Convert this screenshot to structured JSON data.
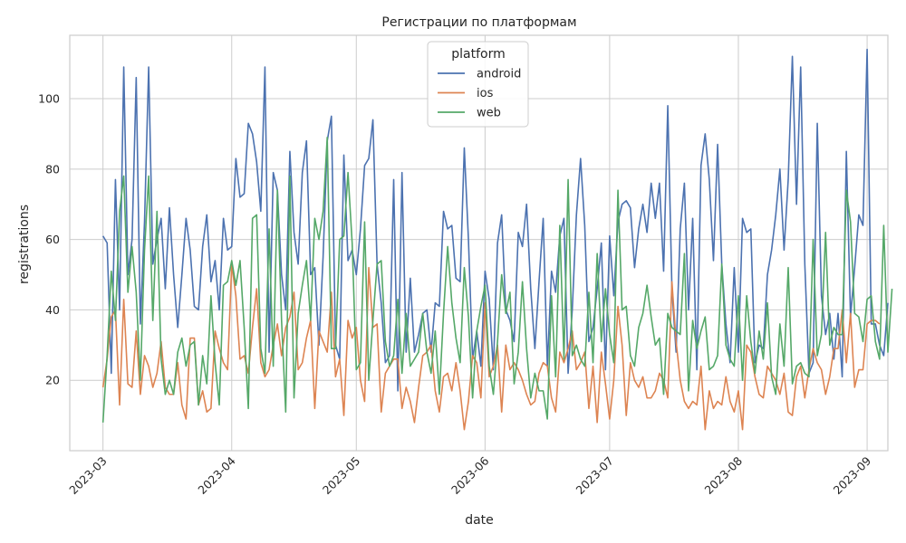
{
  "chart_data": {
    "type": "line",
    "title": "Регистрации по платформам",
    "xlabel": "date",
    "ylabel": "registrations",
    "xlim": [
      "2023-02-21",
      "2023-09-06"
    ],
    "ylim": [
      0,
      118
    ],
    "x_ticks": [
      "2023-03",
      "2023-04",
      "2023-05",
      "2023-06",
      "2023-07",
      "2023-08",
      "2023-09"
    ],
    "y_ticks": [
      20,
      40,
      60,
      80,
      100
    ],
    "grid": true,
    "legend": {
      "title": "platform",
      "placement": "top-center"
    },
    "x_start": "2023-03-01",
    "x_end": "2023-08-31",
    "series": [
      {
        "name": "android",
        "color": "#4c72b0",
        "values": [
          61,
          59,
          22,
          77,
          40,
          109,
          50,
          60,
          106,
          36,
          65,
          109,
          53,
          60,
          66,
          46,
          69,
          50,
          35,
          50,
          66,
          57,
          41,
          40,
          58,
          67,
          48,
          54,
          40,
          66,
          57,
          58,
          83,
          72,
          73,
          93,
          90,
          82,
          68,
          109,
          28,
          79,
          74,
          50,
          40,
          85,
          62,
          53,
          79,
          88,
          50,
          52,
          30,
          55,
          88,
          95,
          30,
          26,
          84,
          54,
          57,
          50,
          63,
          81,
          83,
          94,
          53,
          42,
          25,
          27,
          77,
          17,
          79,
          28,
          49,
          28,
          33,
          39,
          40,
          28,
          42,
          41,
          68,
          63,
          64,
          49,
          48,
          86,
          60,
          26,
          34,
          24,
          51,
          43,
          23,
          59,
          67,
          40,
          37,
          31,
          62,
          58,
          70,
          46,
          29,
          48,
          66,
          24,
          51,
          45,
          61,
          66,
          22,
          40,
          67,
          83,
          64,
          31,
          35,
          46,
          59,
          23,
          61,
          44,
          65,
          70,
          71,
          69,
          52,
          63,
          70,
          62,
          76,
          66,
          76,
          51,
          98,
          46,
          28,
          63,
          76,
          40,
          66,
          23,
          81,
          90,
          77,
          54,
          87,
          53,
          36,
          25,
          52,
          28,
          66,
          62,
          63,
          25,
          30,
          29,
          50,
          57,
          67,
          80,
          57,
          77,
          112,
          70,
          109,
          53,
          22,
          25,
          93,
          44,
          33,
          39,
          26,
          39,
          21,
          85,
          38,
          52,
          67,
          64,
          114,
          36,
          36,
          30,
          27,
          42
        ]
      },
      {
        "name": "ios",
        "color": "#dd8452",
        "values": [
          18,
          26,
          38,
          40,
          13,
          43,
          19,
          18,
          34,
          16,
          27,
          24,
          18,
          22,
          31,
          18,
          16,
          16,
          25,
          13,
          9,
          32,
          32,
          13,
          17,
          11,
          12,
          34,
          29,
          25,
          23,
          53,
          44,
          26,
          27,
          22,
          35,
          46,
          25,
          21,
          23,
          30,
          36,
          27,
          35,
          38,
          45,
          23,
          25,
          32,
          37,
          12,
          34,
          31,
          28,
          45,
          21,
          26,
          10,
          37,
          32,
          35,
          20,
          14,
          52,
          35,
          36,
          11,
          22,
          24,
          26,
          26,
          12,
          18,
          14,
          8,
          18,
          27,
          28,
          30,
          17,
          11,
          21,
          22,
          17,
          25,
          17,
          6,
          14,
          27,
          25,
          15,
          42,
          21,
          24,
          30,
          11,
          30,
          23,
          25,
          23,
          20,
          16,
          13,
          14,
          22,
          25,
          24,
          15,
          11,
          28,
          25,
          29,
          34,
          23,
          25,
          28,
          12,
          24,
          8,
          28,
          19,
          9,
          20,
          41,
          30,
          10,
          25,
          20,
          18,
          21,
          15,
          15,
          17,
          22,
          20,
          15,
          48,
          31,
          20,
          14,
          12,
          14,
          13,
          24,
          6,
          17,
          12,
          14,
          13,
          21,
          14,
          11,
          17,
          6,
          30,
          28,
          21,
          16,
          15,
          24,
          22,
          20,
          16,
          22,
          11,
          10,
          21,
          24,
          15,
          23,
          29,
          25,
          23,
          16,
          21,
          29,
          29,
          40,
          25,
          39,
          18,
          23,
          23,
          36,
          37,
          37,
          36
        ]
      },
      {
        "name": "web",
        "color": "#55a868",
        "values": [
          8,
          27,
          51,
          37,
          68,
          78,
          45,
          58,
          45,
          20,
          57,
          78,
          37,
          68,
          26,
          16,
          20,
          16,
          28,
          32,
          24,
          30,
          31,
          13,
          27,
          19,
          44,
          25,
          13,
          47,
          48,
          54,
          47,
          54,
          35,
          12,
          66,
          67,
          29,
          22,
          63,
          24,
          74,
          37,
          11,
          78,
          15,
          39,
          47,
          54,
          37,
          66,
          60,
          68,
          89,
          29,
          29,
          60,
          61,
          79,
          59,
          23,
          25,
          65,
          20,
          37,
          53,
          54,
          31,
          24,
          27,
          43,
          22,
          39,
          24,
          26,
          28,
          39,
          28,
          22,
          34,
          16,
          39,
          58,
          42,
          32,
          25,
          52,
          38,
          15,
          34,
          41,
          47,
          24,
          16,
          31,
          50,
          39,
          45,
          19,
          28,
          48,
          29,
          15,
          22,
          17,
          17,
          9,
          44,
          21,
          64,
          26,
          77,
          27,
          30,
          26,
          24,
          45,
          25,
          56,
          31,
          46,
          33,
          25,
          74,
          40,
          41,
          27,
          24,
          35,
          39,
          47,
          38,
          30,
          32,
          16,
          39,
          35,
          34,
          33,
          56,
          17,
          37,
          29,
          34,
          38,
          23,
          24,
          27,
          53,
          30,
          26,
          24,
          44,
          20,
          44,
          31,
          22,
          34,
          26,
          42,
          21,
          16,
          36,
          24,
          52,
          19,
          24,
          25,
          22,
          21,
          60,
          27,
          33,
          62,
          30,
          35,
          33,
          33,
          74,
          65,
          39,
          38,
          31,
          43,
          44,
          31,
          26,
          64,
          28,
          46
        ]
      }
    ]
  }
}
